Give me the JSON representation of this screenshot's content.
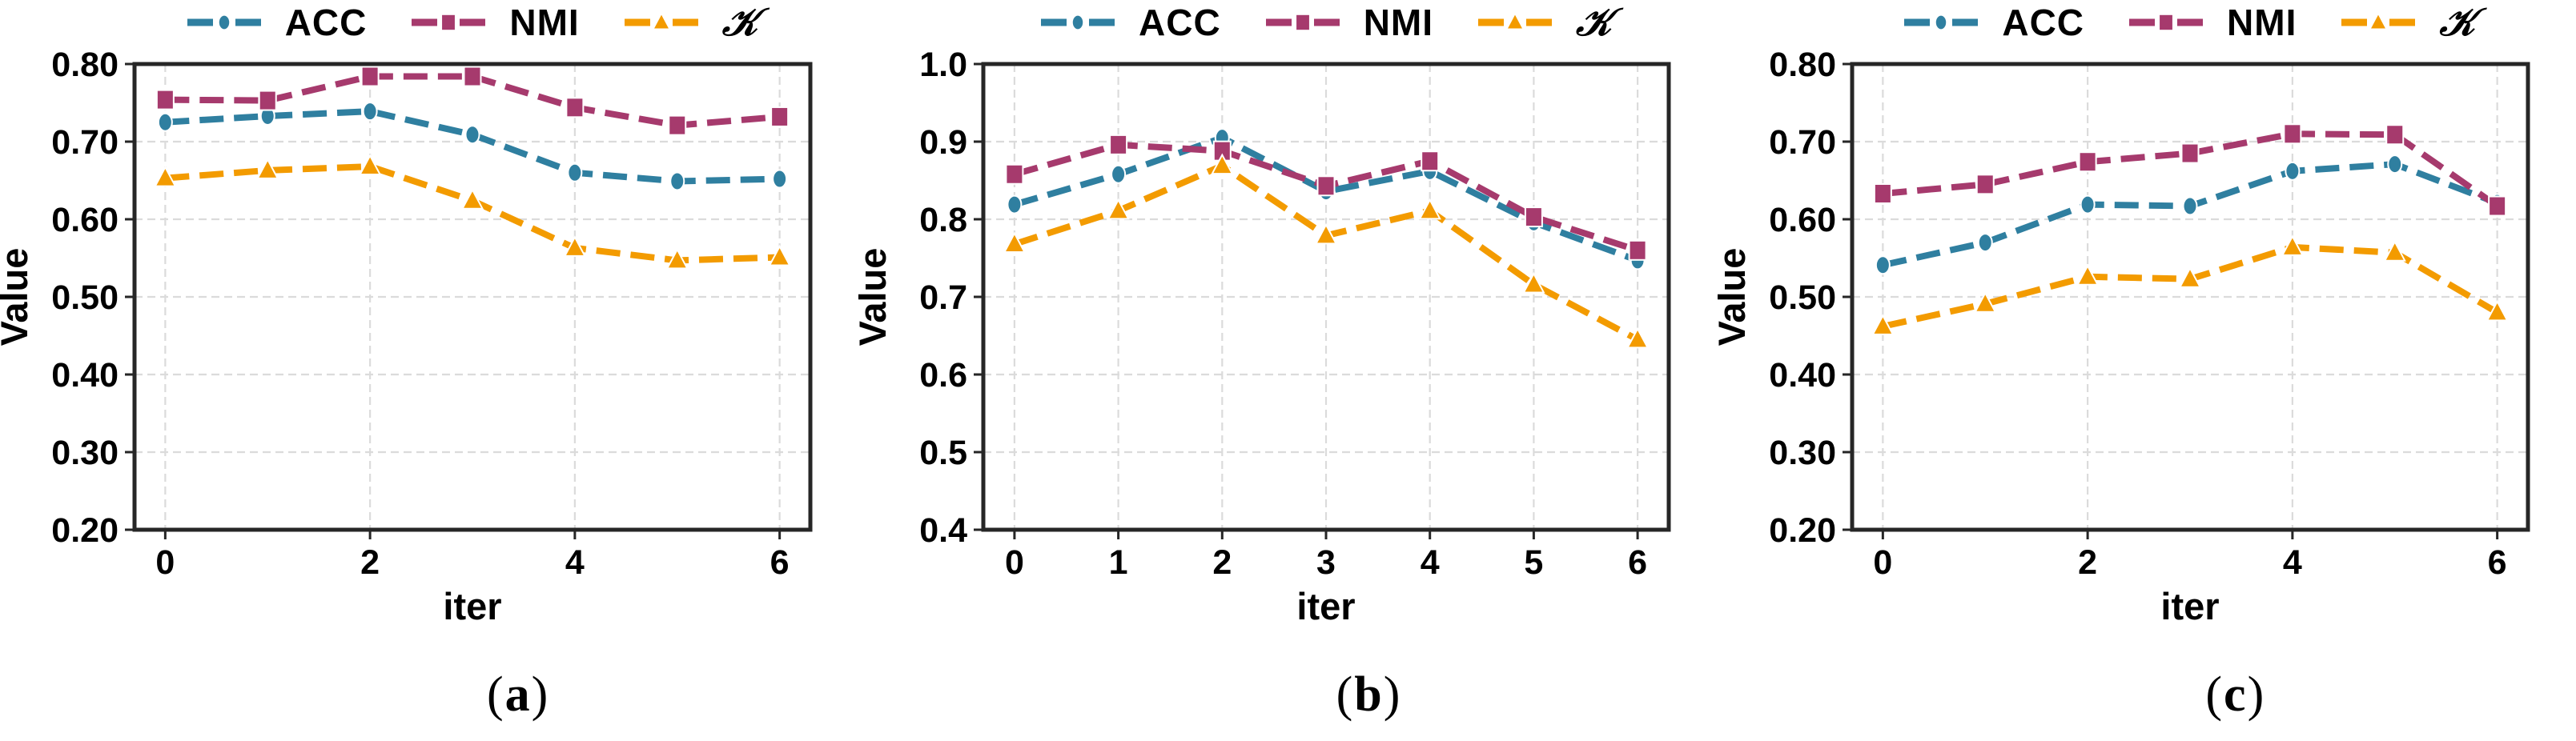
{
  "figure": {
    "background": "#ffffff",
    "xlabel": "iter",
    "ylabel": "Value",
    "legend_entries": [
      "ACC",
      "NMI",
      "𝒦"
    ]
  },
  "colors": {
    "acc": "#2F7FA0",
    "nmi": "#A63A6D",
    "kappa": "#F39B00",
    "axis_border": "#262626",
    "grid": "#DBDBDB",
    "text": "#000000"
  },
  "chart_data": [
    {
      "type": "line",
      "caption": {
        "open": "(",
        "letter": "a",
        "close": ")"
      },
      "xlabel": "iter",
      "ylabel": "Value",
      "grid": true,
      "legend_position": "top",
      "x": [
        0,
        1,
        2,
        3,
        4,
        5,
        6
      ],
      "xlim": [
        -0.3,
        6.3
      ],
      "ylim": [
        0.2,
        0.8
      ],
      "xticks": [
        {
          "value": 0,
          "label": "0"
        },
        {
          "value": 2,
          "label": "2"
        },
        {
          "value": 4,
          "label": "4"
        },
        {
          "value": 6,
          "label": "6"
        }
      ],
      "yticks": [
        {
          "value": 0.2,
          "label": "0.20"
        },
        {
          "value": 0.3,
          "label": "0.30"
        },
        {
          "value": 0.4,
          "label": "0.40"
        },
        {
          "value": 0.5,
          "label": "0.50"
        },
        {
          "value": 0.6,
          "label": "0.60"
        },
        {
          "value": 0.7,
          "label": "0.70"
        },
        {
          "value": 0.8,
          "label": "0.80"
        }
      ],
      "series": [
        {
          "name": "ACC",
          "marker": "circle",
          "color": "#2F7FA0",
          "values": [
            0.725,
            0.733,
            0.739,
            0.709,
            0.66,
            0.649,
            0.652
          ]
        },
        {
          "name": "NMI",
          "marker": "square",
          "color": "#A63A6D",
          "values": [
            0.754,
            0.753,
            0.784,
            0.784,
            0.744,
            0.721,
            0.732
          ]
        },
        {
          "name": "𝒦",
          "marker": "triangle",
          "color": "#F39B00",
          "values": [
            0.653,
            0.663,
            0.668,
            0.624,
            0.563,
            0.547,
            0.551
          ]
        }
      ]
    },
    {
      "type": "line",
      "caption": {
        "open": "(",
        "letter": "b",
        "close": ")"
      },
      "xlabel": "iter",
      "ylabel": "Value",
      "grid": true,
      "legend_position": "top",
      "x": [
        0,
        1,
        2,
        3,
        4,
        5,
        6
      ],
      "xlim": [
        -0.3,
        6.3
      ],
      "ylim": [
        0.4,
        1.0
      ],
      "xticks": [
        {
          "value": 0,
          "label": "0"
        },
        {
          "value": 1,
          "label": "1"
        },
        {
          "value": 2,
          "label": "2"
        },
        {
          "value": 3,
          "label": "3"
        },
        {
          "value": 4,
          "label": "4"
        },
        {
          "value": 5,
          "label": "5"
        },
        {
          "value": 6,
          "label": "6"
        }
      ],
      "yticks": [
        {
          "value": 0.4,
          "label": "0.4"
        },
        {
          "value": 0.5,
          "label": "0.5"
        },
        {
          "value": 0.6,
          "label": "0.6"
        },
        {
          "value": 0.7,
          "label": "0.7"
        },
        {
          "value": 0.8,
          "label": "0.8"
        },
        {
          "value": 0.9,
          "label": "0.9"
        },
        {
          "value": 1.0,
          "label": "1.0"
        }
      ],
      "series": [
        {
          "name": "ACC",
          "marker": "circle",
          "color": "#2F7FA0",
          "values": [
            0.819,
            0.858,
            0.905,
            0.836,
            0.862,
            0.796,
            0.747
          ]
        },
        {
          "name": "NMI",
          "marker": "square",
          "color": "#A63A6D",
          "values": [
            0.858,
            0.896,
            0.888,
            0.843,
            0.875,
            0.803,
            0.76
          ]
        },
        {
          "name": "𝒦",
          "marker": "triangle",
          "color": "#F39B00",
          "values": [
            0.768,
            0.811,
            0.869,
            0.779,
            0.811,
            0.716,
            0.645
          ]
        }
      ]
    },
    {
      "type": "line",
      "caption": {
        "open": "(",
        "letter": "c",
        "close": ")"
      },
      "xlabel": "iter",
      "ylabel": "Value",
      "grid": true,
      "legend_position": "top",
      "x": [
        0,
        1,
        2,
        3,
        4,
        5,
        6
      ],
      "xlim": [
        -0.3,
        6.3
      ],
      "ylim": [
        0.2,
        0.8
      ],
      "xticks": [
        {
          "value": 0,
          "label": "0"
        },
        {
          "value": 2,
          "label": "2"
        },
        {
          "value": 4,
          "label": "4"
        },
        {
          "value": 6,
          "label": "6"
        }
      ],
      "yticks": [
        {
          "value": 0.2,
          "label": "0.20"
        },
        {
          "value": 0.3,
          "label": "0.30"
        },
        {
          "value": 0.4,
          "label": "0.40"
        },
        {
          "value": 0.5,
          "label": "0.50"
        },
        {
          "value": 0.6,
          "label": "0.60"
        },
        {
          "value": 0.7,
          "label": "0.70"
        },
        {
          "value": 0.8,
          "label": "0.80"
        }
      ],
      "series": [
        {
          "name": "ACC",
          "marker": "circle",
          "color": "#2F7FA0",
          "values": [
            0.541,
            0.57,
            0.619,
            0.617,
            0.662,
            0.671,
            0.621
          ]
        },
        {
          "name": "NMI",
          "marker": "square",
          "color": "#A63A6D",
          "values": [
            0.633,
            0.645,
            0.674,
            0.685,
            0.71,
            0.709,
            0.617
          ]
        },
        {
          "name": "𝒦",
          "marker": "triangle",
          "color": "#F39B00",
          "values": [
            0.462,
            0.491,
            0.526,
            0.523,
            0.564,
            0.557,
            0.48
          ]
        }
      ]
    }
  ]
}
